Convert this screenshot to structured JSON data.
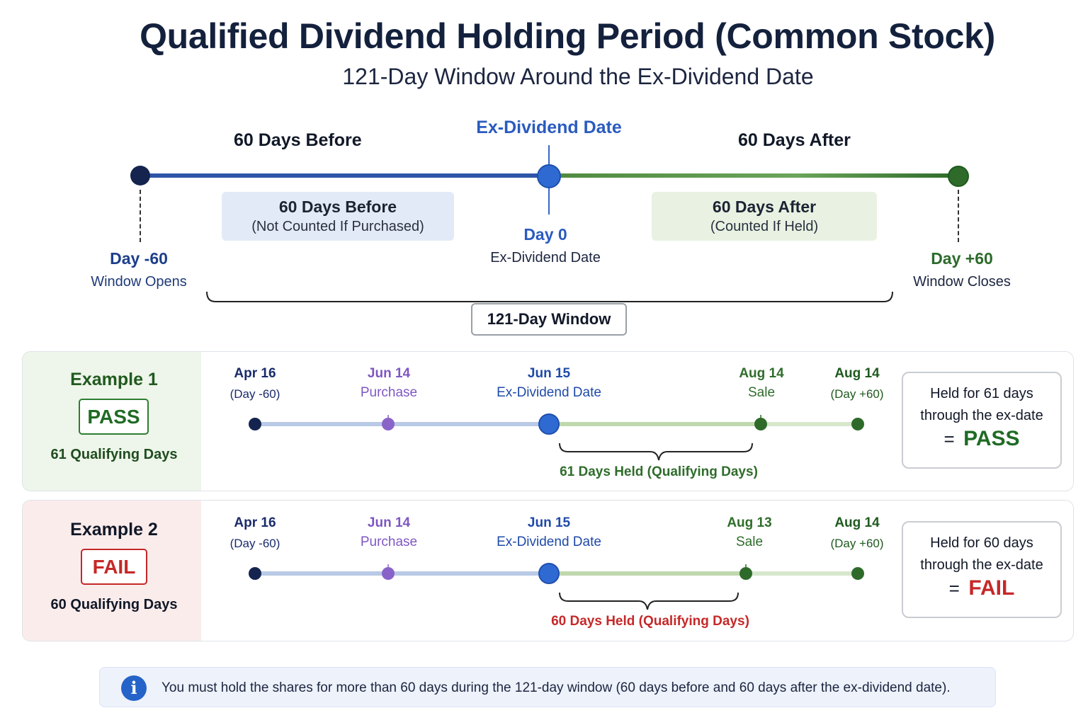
{
  "title": "Qualified Dividend Holding Period (Common Stock)",
  "subtitle": "121-Day Window Around the Ex-Dividend Date",
  "timeline": {
    "before_label": "60 Days Before",
    "after_label": "60 Days After",
    "exdiv_label": "Ex-Dividend Date",
    "before_box": {
      "title": "60 Days Before",
      "note": "(Not Counted If Purchased)"
    },
    "after_box": {
      "title": "60 Days After",
      "note": "(Counted If Held)"
    },
    "start": {
      "day": "Day -60",
      "desc": "Window Opens"
    },
    "center": {
      "day": "Day 0",
      "desc": "Ex-Dividend Date"
    },
    "end": {
      "day": "Day +60",
      "desc": "Window Closes"
    },
    "window_label": "121-Day Window"
  },
  "examples": [
    {
      "title": "Example 1",
      "badge": "PASS",
      "qualifying": "61 Qualifying Days",
      "points": [
        {
          "date": "Apr 16",
          "sub": "(Day -60)"
        },
        {
          "date": "Jun 14",
          "sub": "Purchase"
        },
        {
          "date": "Jun 15",
          "sub": "Ex-Dividend Date"
        },
        {
          "date": "Aug 14",
          "sub": "Sale"
        },
        {
          "date": "Aug 14",
          "sub": "(Day +60)"
        }
      ],
      "held": "61 Days Held (Qualifying Days)",
      "result_line1": "Held for 61 days",
      "result_line2": "through the ex-date",
      "result_eq": "=",
      "result": "PASS"
    },
    {
      "title": "Example 2",
      "badge": "FAIL",
      "qualifying": "60 Qualifying Days",
      "points": [
        {
          "date": "Apr 16",
          "sub": "(Day -60)"
        },
        {
          "date": "Jun 14",
          "sub": "Purchase"
        },
        {
          "date": "Jun 15",
          "sub": "Ex-Dividend Date"
        },
        {
          "date": "Aug 13",
          "sub": "Sale"
        },
        {
          "date": "Aug 14",
          "sub": "(Day +60)"
        }
      ],
      "held": "60 Days Held (Qualifying Days)",
      "result_line1": "Held for 60 days",
      "result_line2": "through the ex-date",
      "result_eq": "=",
      "result": "FAIL"
    }
  ],
  "note": {
    "icon": "info-icon",
    "text": "You must hold the shares for more than 60 days during the 121-day window (60 days before and 60 days after the ex-dividend date)."
  },
  "colors": {
    "navy": "#14244f",
    "blue": "#2563c9",
    "green": "#2e6b2a",
    "purple": "#8a63c9",
    "pass": "#1f6b24",
    "fail": "#c62828"
  }
}
